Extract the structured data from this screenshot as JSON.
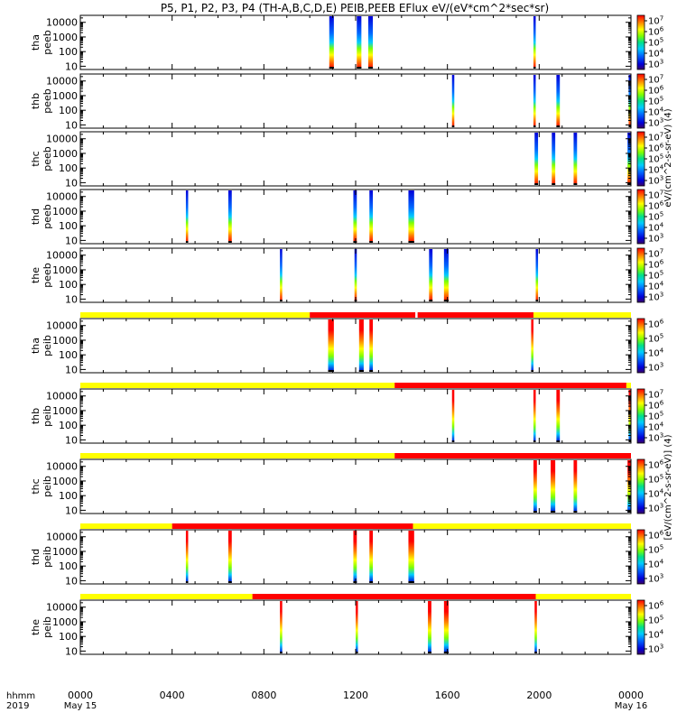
{
  "chart_data": {
    "type": "heatmap",
    "title": "P5, P1, P2, P3, P4 (TH-A,B,C,D,E) PEIB,PEEB EFlux eV/(eV*cm^2*sec*sr)",
    "x_tick_labels": [
      "0000",
      "0400",
      "0800",
      "1200",
      "1600",
      "2000",
      "0000"
    ],
    "x_ticks_hours": [
      0,
      4,
      8,
      12,
      16,
      20,
      24
    ],
    "date_labels": [
      {
        "text": "May 15",
        "hour": 0
      },
      {
        "text": "May 16",
        "hour": 24
      }
    ],
    "x_axis_left_labels": {
      "line1": "hhmm",
      "line2": "2019"
    },
    "xlim_hours": [
      0,
      24
    ],
    "y_scale": "log",
    "ylim": [
      6,
      30000
    ],
    "y_tick_labels": [
      "10000",
      "1000",
      "100",
      "10"
    ],
    "y_ticks": [
      10000,
      1000,
      100,
      10
    ],
    "colorbar_units_electron": "eV/(cm^2-s-sr-eV) (4)",
    "colorbar_units_ion": "[eV/(cm^2-s-sr-eV)] (4)",
    "colormap": [
      "#3a0066",
      "#0000d8",
      "#0066ff",
      "#00ccff",
      "#00e08a",
      "#7fff00",
      "#ffff00",
      "#ff8000",
      "#ff0000"
    ],
    "mode_bar_colors": {
      "yellow": "#ffff00",
      "red": "#ff0000"
    },
    "panels": [
      {
        "label1": "tha",
        "label2": "peeb",
        "cbar_ticks": [
          "10^7",
          "10^6",
          "10^5",
          "10^4",
          "10^3"
        ],
        "mode_bar": null,
        "bursts": [
          [
            10.85,
            11.05
          ],
          [
            12.05,
            12.25
          ],
          [
            12.55,
            12.75
          ],
          [
            19.75,
            19.85
          ]
        ]
      },
      {
        "label1": "thb",
        "label2": "peeb",
        "cbar_ticks": [
          "10^7",
          "10^6",
          "10^5",
          "10^4",
          "10^3"
        ],
        "mode_bar": null,
        "bursts": [
          [
            16.2,
            16.3
          ],
          [
            19.75,
            19.85
          ],
          [
            20.75,
            20.9
          ],
          [
            23.9,
            24.0
          ]
        ]
      },
      {
        "label1": "thc",
        "label2": "peeb",
        "cbar_ticks": [
          "10^7",
          "10^6",
          "10^5",
          "10^4",
          "10^3"
        ],
        "mode_bar": null,
        "bursts": [
          [
            19.8,
            19.95
          ],
          [
            20.55,
            20.7
          ],
          [
            21.5,
            21.65
          ],
          [
            23.85,
            24.0
          ]
        ]
      },
      {
        "label1": "thd",
        "label2": "peeb",
        "cbar_ticks": [
          "10^7",
          "10^6",
          "10^5",
          "10^4",
          "10^3"
        ],
        "mode_bar": null,
        "bursts": [
          [
            4.6,
            4.7
          ],
          [
            6.45,
            6.6
          ],
          [
            11.9,
            12.05
          ],
          [
            12.6,
            12.75
          ],
          [
            14.3,
            14.55
          ]
        ]
      },
      {
        "label1": "the",
        "label2": "peeb",
        "cbar_ticks": [
          "10^7",
          "10^6",
          "10^5",
          "10^4",
          "10^3"
        ],
        "mode_bar": null,
        "bursts": [
          [
            8.7,
            8.8
          ],
          [
            11.95,
            12.05
          ],
          [
            15.2,
            15.35
          ],
          [
            15.85,
            16.05
          ],
          [
            19.85,
            19.95
          ]
        ]
      },
      {
        "label1": "tha",
        "label2": "peib",
        "cbar_ticks": [
          "10^6",
          "10^5",
          "10^4",
          "10^3"
        ],
        "mode_bar": {
          "segments": [
            [
              "y",
              0,
              10.0
            ],
            [
              "r",
              10.0,
              14.6
            ],
            [
              "r",
              14.7,
              19.75
            ],
            [
              "y",
              19.75,
              24
            ]
          ]
        },
        "bursts": [
          [
            10.8,
            11.05
          ],
          [
            12.15,
            12.35
          ],
          [
            12.6,
            12.75
          ],
          [
            19.65,
            19.75
          ]
        ]
      },
      {
        "label1": "thb",
        "label2": "peib",
        "cbar_ticks": [
          "10^7",
          "10^6",
          "10^5",
          "10^4",
          "10^3"
        ],
        "mode_bar": {
          "segments": [
            [
              "y",
              0,
              13.7
            ],
            [
              "r",
              13.7,
              23.8
            ],
            [
              "y",
              23.8,
              24
            ]
          ]
        },
        "bursts": [
          [
            16.2,
            16.3
          ],
          [
            19.75,
            19.85
          ],
          [
            20.75,
            20.9
          ],
          [
            23.9,
            24.0
          ]
        ]
      },
      {
        "label1": "thc",
        "label2": "peib",
        "cbar_ticks": [
          "10^6",
          "10^5",
          "10^4",
          "10^3"
        ],
        "mode_bar": {
          "segments": [
            [
              "y",
              0,
              13.7
            ],
            [
              "r",
              13.7,
              24
            ]
          ]
        },
        "bursts": [
          [
            19.75,
            19.9
          ],
          [
            20.5,
            20.7
          ],
          [
            21.5,
            21.65
          ],
          [
            23.85,
            24.0
          ]
        ]
      },
      {
        "label1": "thd",
        "label2": "peib",
        "cbar_ticks": [
          "10^6",
          "10^5",
          "10^4",
          "10^3"
        ],
        "mode_bar": {
          "segments": [
            [
              "y",
              0,
              4.0
            ],
            [
              "r",
              4.0,
              14.5
            ],
            [
              "y",
              14.5,
              24
            ]
          ]
        },
        "bursts": [
          [
            4.6,
            4.7
          ],
          [
            6.45,
            6.6
          ],
          [
            11.9,
            12.05
          ],
          [
            12.6,
            12.75
          ],
          [
            14.3,
            14.55
          ]
        ]
      },
      {
        "label1": "the",
        "label2": "peib",
        "cbar_ticks": [
          "10^6",
          "10^5",
          "10^4",
          "10^3"
        ],
        "mode_bar": {
          "segments": [
            [
              "y",
              0,
              7.5
            ],
            [
              "r",
              7.5,
              19.85
            ],
            [
              "y",
              19.85,
              24
            ]
          ]
        },
        "bursts": [
          [
            8.7,
            8.8
          ],
          [
            12.0,
            12.1
          ],
          [
            15.15,
            15.3
          ],
          [
            15.85,
            16.05
          ],
          [
            19.8,
            19.9
          ]
        ]
      }
    ]
  }
}
